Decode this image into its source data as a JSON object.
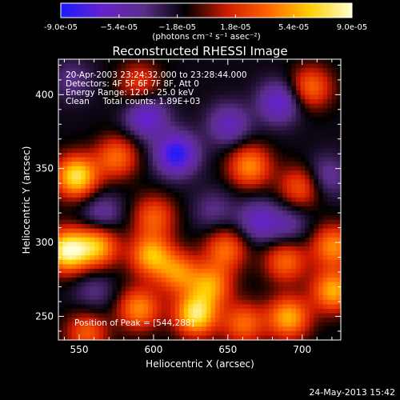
{
  "chart_data": {
    "type": "heatmap",
    "title": "Reconstructed RHESSI Image",
    "xlabel": "Heliocentric X (arcsec)",
    "ylabel": "Heliocentric Y (arcsec)",
    "xlim": [
      536,
      726
    ],
    "ylim": [
      234,
      424
    ],
    "x_ticks": [
      550,
      600,
      650,
      700
    ],
    "y_ticks": [
      250,
      300,
      350,
      400
    ],
    "colorbar": {
      "min": -9e-05,
      "max": 9e-05,
      "tick_labels": [
        "-9.0e-05",
        "−5.4e-05",
        "−1.8e-05",
        "1.8e-05",
        "5.4e-05",
        "9.0e-05"
      ],
      "units_label": "(photons cm⁻² s⁻¹ asec⁻²)",
      "colors": [
        "#1a1aff",
        "#6622cc",
        "#5a2e88",
        "#000000",
        "#d11a00",
        "#ff6600",
        "#ffd000",
        "#ffffd0"
      ]
    },
    "annotations": [
      "20-Apr-2003 23:24:32.000 to 23:28:44.000",
      "Detectors: 4F 5F 6F 7F 8F, Att 0",
      "Energy Range: 12.0 - 25.0 keV",
      "Clean     Total counts: 1.89E+03"
    ],
    "peak_label": "Position of Peak = [544,288]",
    "peak": [
      544,
      288
    ],
    "hot_spots": [
      {
        "x": 548,
        "y": 345,
        "v": 8e-05
      },
      {
        "x": 542,
        "y": 295,
        "v": 9e-05
      },
      {
        "x": 562,
        "y": 298,
        "v": 6e-05
      },
      {
        "x": 598,
        "y": 292,
        "v": 6e-05
      },
      {
        "x": 616,
        "y": 280,
        "v": 4.5e-05
      },
      {
        "x": 590,
        "y": 256,
        "v": 5e-05
      },
      {
        "x": 628,
        "y": 252,
        "v": 8e-05
      },
      {
        "x": 638,
        "y": 272,
        "v": 5e-05
      },
      {
        "x": 555,
        "y": 240,
        "v": 3.5e-05
      },
      {
        "x": 660,
        "y": 246,
        "v": 4e-05
      },
      {
        "x": 690,
        "y": 250,
        "v": 6e-05
      },
      {
        "x": 720,
        "y": 268,
        "v": 6e-05
      },
      {
        "x": 720,
        "y": 298,
        "v": 5e-05
      },
      {
        "x": 688,
        "y": 288,
        "v": 4e-05
      },
      {
        "x": 648,
        "y": 296,
        "v": 4e-05
      },
      {
        "x": 664,
        "y": 352,
        "v": 5e-05
      },
      {
        "x": 698,
        "y": 338,
        "v": 3.5e-05
      },
      {
        "x": 575,
        "y": 358,
        "v": 4e-05
      },
      {
        "x": 600,
        "y": 318,
        "v": 3.5e-05
      },
      {
        "x": 705,
        "y": 405,
        "v": 4e-05
      },
      {
        "x": 590,
        "y": 408,
        "v": 2.5e-05
      }
    ],
    "cold_spots": [
      {
        "x": 615,
        "y": 360,
        "v": -9e-05
      },
      {
        "x": 595,
        "y": 385,
        "v": -7e-05
      },
      {
        "x": 650,
        "y": 380,
        "v": -6e-05
      },
      {
        "x": 684,
        "y": 395,
        "v": -7e-05
      },
      {
        "x": 670,
        "y": 315,
        "v": -6e-05
      },
      {
        "x": 715,
        "y": 345,
        "v": -5e-05
      },
      {
        "x": 565,
        "y": 320,
        "v": -5e-05
      },
      {
        "x": 545,
        "y": 410,
        "v": -4e-05
      },
      {
        "x": 690,
        "y": 312,
        "v": -4.5e-05
      },
      {
        "x": 560,
        "y": 268,
        "v": -4e-05
      },
      {
        "x": 640,
        "y": 322,
        "v": -4e-05
      }
    ]
  },
  "footer": {
    "date": "24-May-2013 15:42"
  }
}
